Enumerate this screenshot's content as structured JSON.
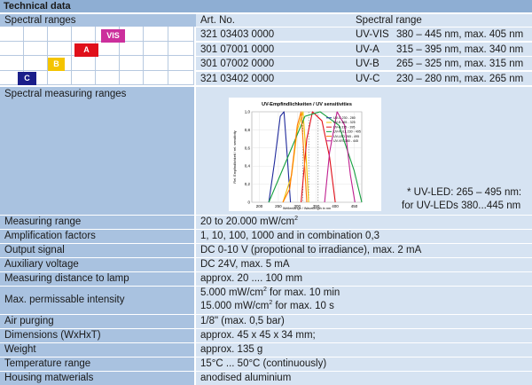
{
  "title": "Technical data",
  "spectral": {
    "label": "Spectral ranges",
    "col_artno": "Art. No.",
    "col_range": "Spectral range",
    "blocks": [
      {
        "label": "VIS",
        "color": "#cc2f9c"
      },
      {
        "label": "A",
        "color": "#e0101a"
      },
      {
        "label": "B",
        "color": "#f4c400"
      },
      {
        "label": "C",
        "color": "#1a1e8a"
      }
    ],
    "rows": [
      {
        "art": "321 03403 0000",
        "type": "UV-VIS",
        "range": "380 – 445 nm, max. 405 nm"
      },
      {
        "art": "301 07001 0000",
        "type": "UV-A",
        "range": "315 – 395 nm, max. 340 nm"
      },
      {
        "art": "301 07002 0000",
        "type": "UV-B",
        "range": "265 – 325 nm, max. 315 nm"
      },
      {
        "art": "321 03402 0000",
        "type": "UV-C",
        "range": "230 – 280 nm, max. 265 nm"
      }
    ]
  },
  "measuring": {
    "label": "Spectral measuring ranges",
    "note1": "* UV-LED: 265 – 495 nm:",
    "note2": "for UV-LEDs 380...445 nm"
  },
  "chart_data": {
    "type": "line",
    "title": "UV-Empfindlichkeiten / UV sensitivities",
    "xlabel": "Wellenlänge / Wavelength in nm",
    "ylabel": "Rel. Empfindlichkeit / rel. sensitivity",
    "xlim": [
      180,
      470
    ],
    "ylim": [
      0,
      1.0
    ],
    "xticks": [
      "200",
      "250",
      "300",
      "350",
      "400",
      "450"
    ],
    "yticks": [
      "0",
      "0,2",
      "0,4",
      "0,6",
      "0,8",
      "1,0"
    ],
    "legend": [
      "UV-C 230 - 280",
      "UV-B 265 - 325",
      "UV-A 315 - 395",
      "UV-FULL 230 - 495",
      "UV-LED 265 - 495",
      "UV-VIS 380 - 445"
    ],
    "series": [
      {
        "name": "UV-C 230 - 280",
        "color": "#1f2a9c",
        "x": [
          225,
          240,
          255,
          265,
          272,
          282
        ],
        "y": [
          0,
          0.45,
          0.95,
          1.0,
          0.6,
          0
        ]
      },
      {
        "name": "UV-B 265 - 325",
        "color": "#f0c000",
        "x": [
          262,
          285,
          300,
          315,
          322,
          330
        ],
        "y": [
          0,
          0.3,
          0.8,
          1.0,
          0.6,
          0
        ]
      },
      {
        "name": "UV-A 315 - 395",
        "color": "#e0101a",
        "x": [
          310,
          325,
          340,
          365,
          385,
          400
        ],
        "y": [
          0,
          0.7,
          1.0,
          0.9,
          0.5,
          0
        ]
      },
      {
        "name": "UV-FULL 230 - 495",
        "color": "#16a040",
        "x": [
          225,
          270,
          320,
          360,
          410,
          450,
          470
        ],
        "y": [
          0,
          0.45,
          0.95,
          1.0,
          0.85,
          0.35,
          0
        ]
      },
      {
        "name": "UV-LED 265 - 495",
        "color": "#ff7a00",
        "x": [
          262,
          280,
          300,
          310,
          318,
          325
        ],
        "y": [
          0,
          0.15,
          0.85,
          1.0,
          0.5,
          0
        ]
      },
      {
        "name": "UV-VIS 380 - 445",
        "color": "#c02090",
        "x": [
          372,
          385,
          405,
          425,
          440,
          452
        ],
        "y": [
          0,
          0.55,
          1.0,
          0.85,
          0.3,
          0
        ]
      }
    ]
  },
  "specs": [
    {
      "label": "Measuring range",
      "lines": [
        "20 to 20.000 mW/cm²"
      ]
    },
    {
      "label": "Amplification factors",
      "lines": [
        "1, 10, 100, 1000 and in combination 0,3"
      ]
    },
    {
      "label": "Output signal",
      "lines": [
        "DC 0-10 V (propotional to irradiance), max. 2 mA"
      ]
    },
    {
      "label": "Auxiliary voltage",
      "lines": [
        "DC 24V, max. 5 mA"
      ]
    },
    {
      "label": "Measuring distance to lamp",
      "lines": [
        "approx. 20 .... 100 mm"
      ]
    },
    {
      "label": "Max. permissable intensity",
      "lines": [
        "5.000 mW/cm² for max. 10 min",
        "15.000 mW/cm² for max. 10 s"
      ]
    },
    {
      "label": "Air purging",
      "lines": [
        "1/8\" (max. 0,5 bar)"
      ]
    },
    {
      "label": "Dimensions (WxHxT)",
      "lines": [
        "approx. 45 x 45 x 34 mm;"
      ]
    },
    {
      "label": "Weight",
      "lines": [
        "approx. 135 g"
      ]
    },
    {
      "label": "Temperature range",
      "lines": [
        "15°C ... 50°C (continuously)"
      ]
    },
    {
      "label": "Housing matwerials",
      "lines": [
        "anodised aluminium"
      ]
    }
  ]
}
